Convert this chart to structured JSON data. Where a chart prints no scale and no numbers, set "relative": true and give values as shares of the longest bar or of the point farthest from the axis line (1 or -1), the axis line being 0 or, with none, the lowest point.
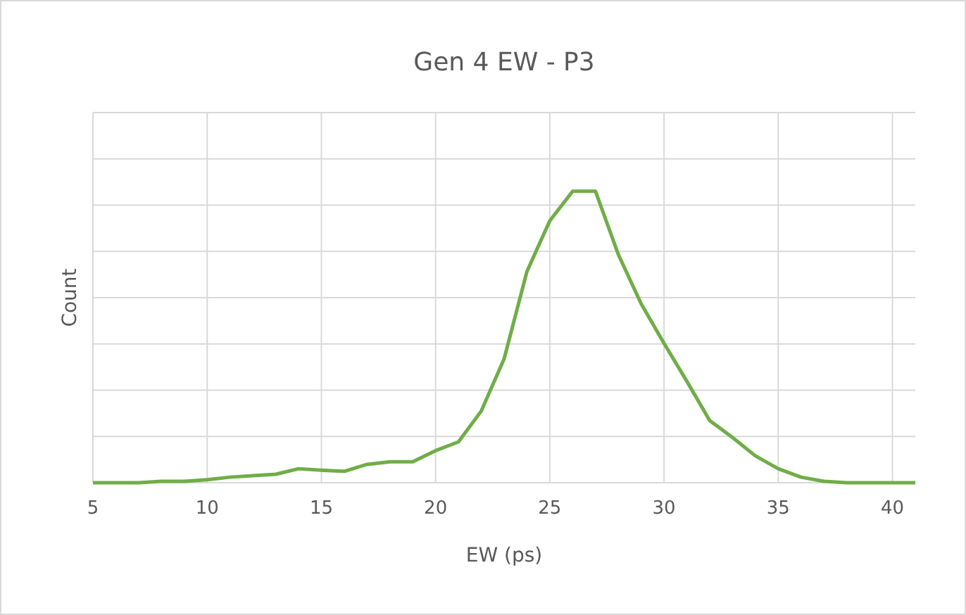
{
  "chart_data": {
    "type": "line",
    "title": "Gen 4 EW - P3",
    "xlabel": "EW (ps)",
    "ylabel": "Count",
    "relative": true,
    "grid": true,
    "marker": "none",
    "line_style": "solid",
    "xlim": [
      5,
      41
    ],
    "xticks": [
      5,
      10,
      15,
      20,
      25,
      30,
      35,
      40
    ],
    "x": [
      5,
      6,
      7,
      8,
      9,
      10,
      11,
      12,
      13,
      14,
      15,
      16,
      17,
      18,
      19,
      20,
      21,
      22,
      23,
      24,
      25,
      26,
      27,
      28,
      29,
      30,
      31,
      32,
      33,
      34,
      35,
      36,
      37,
      38,
      39,
      40,
      41
    ],
    "series": [
      {
        "color": "#70ad47",
        "values": [
          0,
          0,
          0,
          0.005,
          0.005,
          0.01,
          0.019,
          0.024,
          0.029,
          0.048,
          0.043,
          0.039,
          0.063,
          0.072,
          0.072,
          0.11,
          0.14,
          0.246,
          0.425,
          0.725,
          0.899,
          1,
          1,
          0.783,
          0.614,
          0.478,
          0.348,
          0.213,
          0.155,
          0.092,
          0.048,
          0.019,
          0.005,
          0,
          0,
          0,
          0
        ]
      }
    ]
  }
}
